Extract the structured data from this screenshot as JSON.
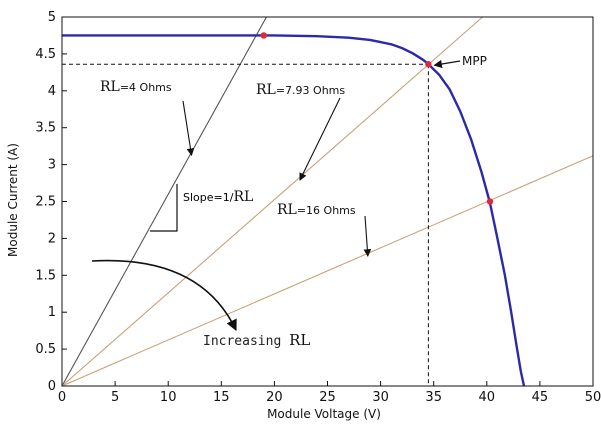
{
  "chart_data": {
    "type": "line",
    "xlabel": "Module Voltage (V)",
    "ylabel": "Module Current (A)",
    "xlim": [
      0,
      50
    ],
    "ylim": [
      0,
      5
    ],
    "xticks": [
      0,
      5,
      10,
      15,
      20,
      25,
      30,
      35,
      40,
      45,
      50
    ],
    "yticks": [
      0,
      0.5,
      1,
      1.5,
      2,
      2.5,
      3,
      3.5,
      4,
      4.5,
      5
    ],
    "ytick_labels": [
      "0",
      "0.5",
      "1",
      "1.5",
      "2",
      "2.5",
      "3",
      "3.5",
      "4",
      "4.5",
      "5"
    ],
    "grid": false,
    "iv_curve": {
      "color": "#2c2aa8",
      "x": [
        0,
        10,
        20,
        24,
        27,
        29,
        31,
        32,
        33,
        34,
        34.5,
        35.5,
        36.5,
        37.5,
        38.5,
        39.5,
        40.3,
        41,
        41.7,
        42.3,
        42.8,
        43.2,
        43.5
      ],
      "y": [
        4.75,
        4.75,
        4.75,
        4.74,
        4.72,
        4.69,
        4.63,
        4.58,
        4.51,
        4.42,
        4.36,
        4.22,
        4.02,
        3.72,
        3.35,
        2.9,
        2.48,
        2.0,
        1.5,
        1.0,
        0.55,
        0.2,
        0.0
      ]
    },
    "load_lines": [
      {
        "label_prefix": "RL",
        "label_suffix": "=4 Ohms",
        "color": "#555555",
        "x": [
          0,
          19.25
        ],
        "y": [
          0,
          5.0
        ]
      },
      {
        "label_prefix": "RL",
        "label_suffix": "=7.93 Ohms",
        "color": "#c9a27a",
        "x": [
          0,
          39.6
        ],
        "y": [
          0,
          5.0
        ]
      },
      {
        "label_prefix": "RL",
        "label_suffix": "=16 Ohms",
        "color": "#c9a27a",
        "x": [
          0,
          50
        ],
        "y": [
          0,
          3.12
        ]
      }
    ],
    "intersection_points": [
      {
        "x": 19.0,
        "y": 4.75
      },
      {
        "x": 34.5,
        "y": 4.36
      },
      {
        "x": 40.3,
        "y": 2.5
      }
    ],
    "mpp": {
      "label": "MPP",
      "x": 34.5,
      "y": 4.36
    },
    "slope_label_prefix": "Slope=1/",
    "slope_label_suffix": "RL",
    "increasing_label_prefix": "Increasing ",
    "increasing_label_suffix": "RL",
    "colors": {
      "curve": "#2c2aa8",
      "points": "#e0283a",
      "axes": "#111111"
    }
  }
}
